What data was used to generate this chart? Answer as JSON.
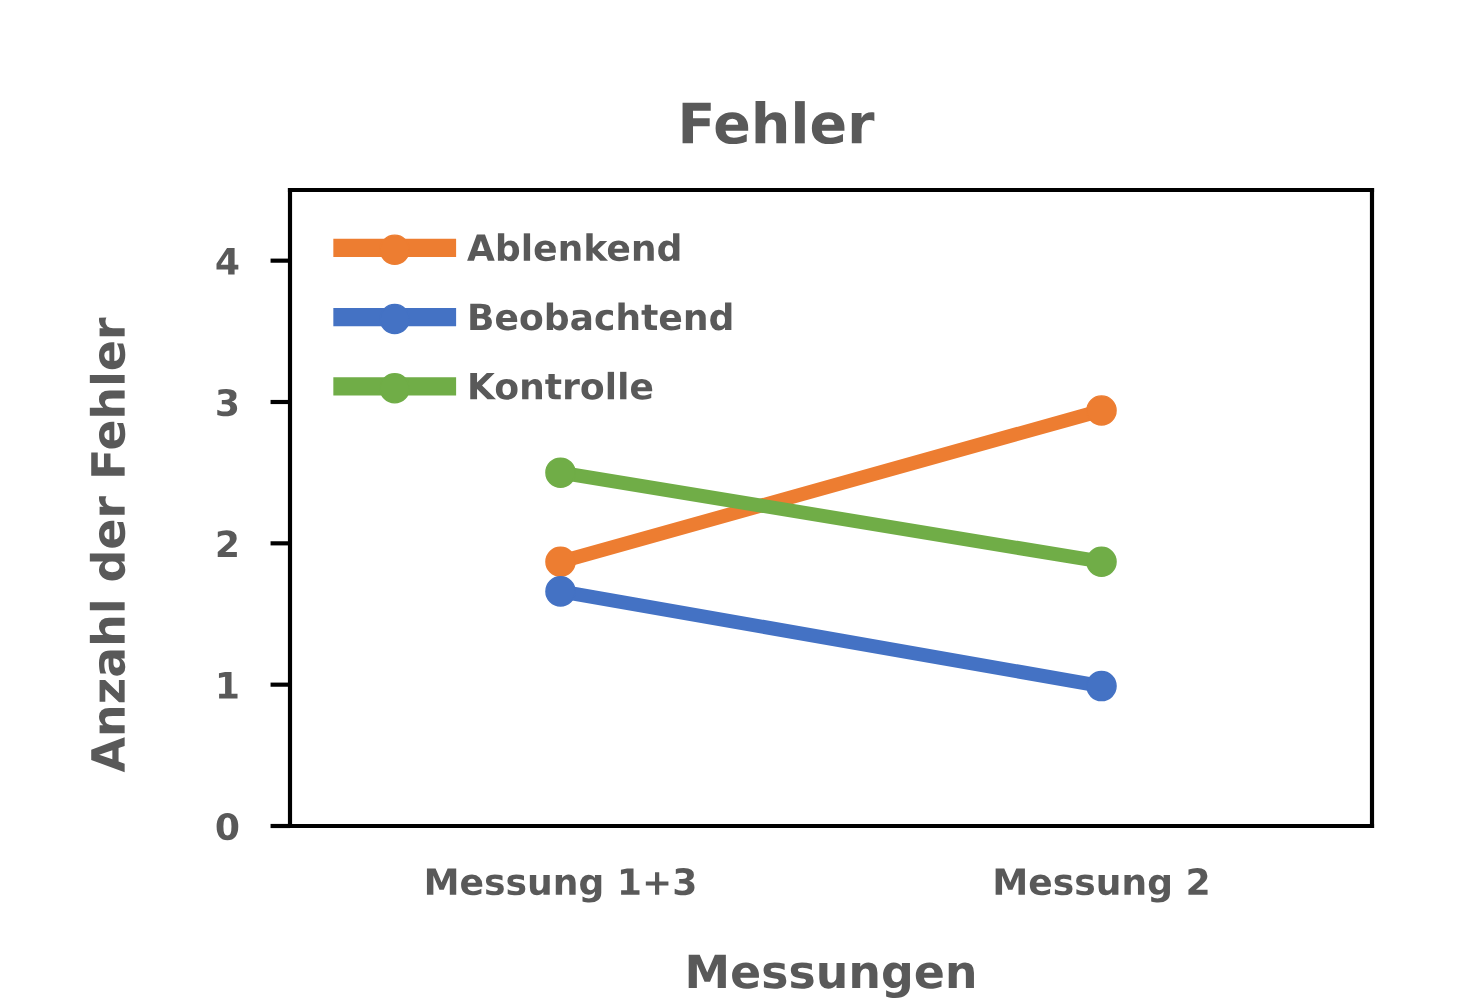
{
  "chart_data": {
    "type": "line",
    "title": "Fehler",
    "xlabel": "Messungen",
    "ylabel": "Anzahl der Fehler",
    "categories": [
      "Messung 1+3",
      "Messung 2"
    ],
    "series": [
      {
        "name": "Ablenkend",
        "color": "#ed7d31",
        "values": [
          1.87,
          2.94
        ]
      },
      {
        "name": "Beobachtend",
        "color": "#4472c4",
        "values": [
          1.66,
          0.99
        ]
      },
      {
        "name": "Kontrolle",
        "color": "#70ad47",
        "values": [
          2.5,
          1.87
        ]
      }
    ],
    "ylim": [
      0,
      4.5
    ],
    "yticks": [
      0,
      1,
      2,
      3,
      4
    ],
    "grid": false,
    "legend": "top left",
    "marker": "circle",
    "line_style": "solid"
  }
}
